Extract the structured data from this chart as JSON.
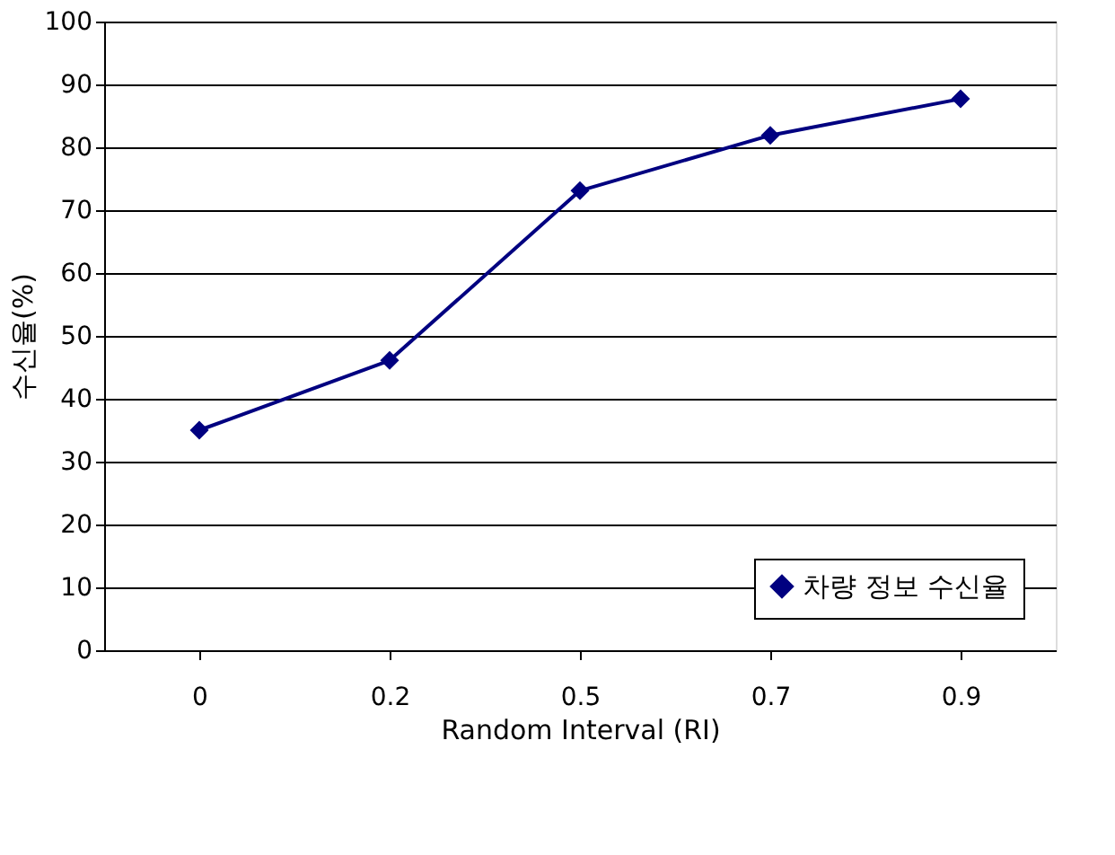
{
  "chart_data": {
    "type": "line",
    "xlabel": "Random Interval (RI)",
    "ylabel": "수신율(%)",
    "categories": [
      "0",
      "0.2",
      "0.5",
      "0.7",
      "0.9"
    ],
    "series": [
      {
        "name": "차량 정보 수신율",
        "color": "#000080",
        "values": [
          35.0,
          46.1,
          73.1,
          81.9,
          87.7
        ]
      }
    ],
    "ylim": [
      0,
      100
    ],
    "yticks": [
      0,
      10,
      20,
      30,
      40,
      50,
      60,
      70,
      80,
      90,
      100
    ],
    "grid": "y",
    "legend": "bottom right",
    "marker": "diamond",
    "line_style": "solid"
  }
}
